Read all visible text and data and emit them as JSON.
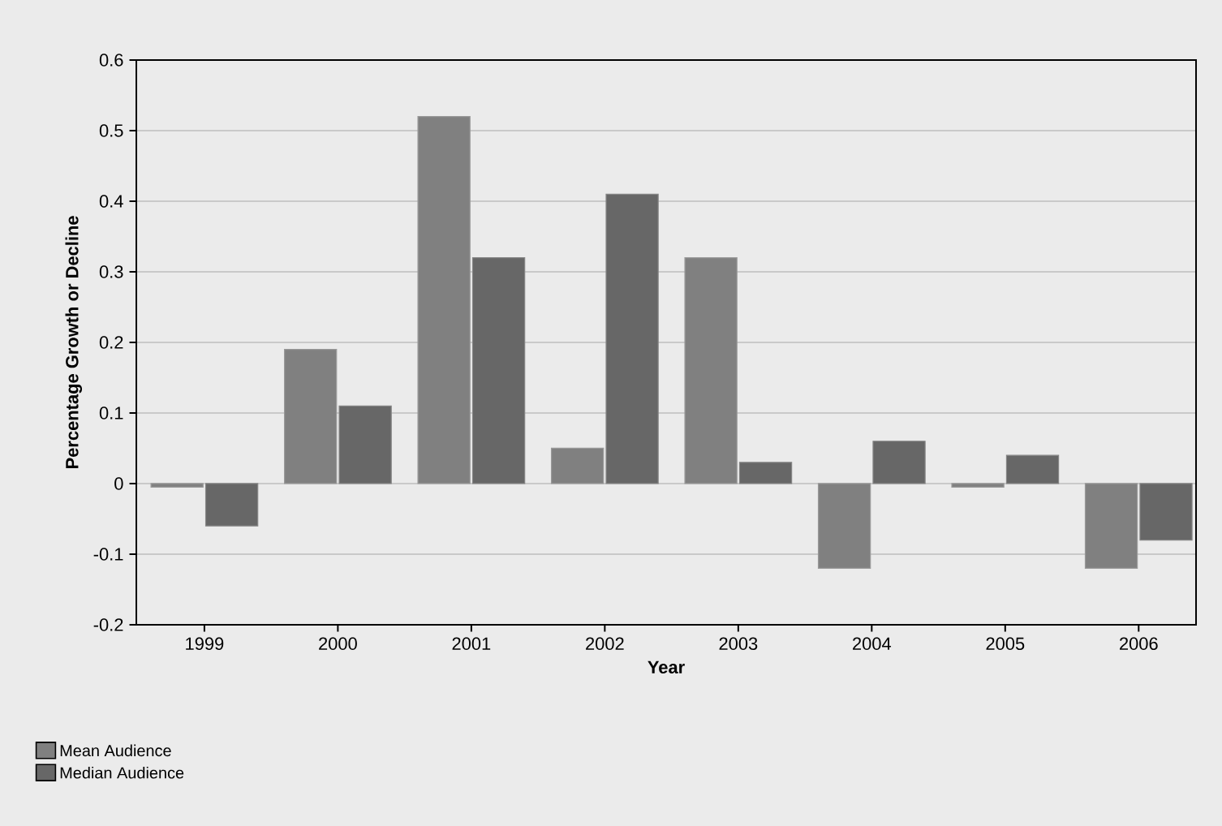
{
  "chart_data": {
    "type": "bar",
    "xlabel": "Year",
    "ylabel": "Percentage Growth or Decline",
    "categories": [
      "1999",
      "2000",
      "2001",
      "2002",
      "2003",
      "2004",
      "2005",
      "2006"
    ],
    "series": [
      {
        "name": "Mean Audience",
        "color": "#808080",
        "values": [
          -0.005,
          0.19,
          0.52,
          0.05,
          0.32,
          -0.12,
          -0.005,
          -0.12
        ]
      },
      {
        "name": "Median Audience",
        "color": "#676767",
        "values": [
          -0.06,
          0.11,
          0.32,
          0.41,
          0.03,
          0.06,
          0.04,
          -0.08
        ]
      }
    ],
    "ylim": [
      -0.2,
      0.6
    ],
    "yticks": [
      -0.2,
      -0.1,
      0,
      0.1,
      0.2,
      0.3,
      0.4,
      0.5,
      0.6
    ],
    "grid": "y",
    "legend": "bottom left"
  }
}
